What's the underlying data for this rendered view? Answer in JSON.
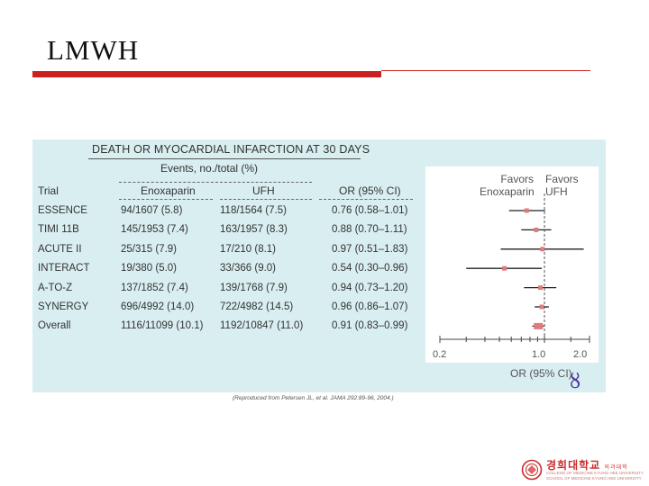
{
  "slide": {
    "title": "LMWH"
  },
  "table": {
    "heading": "DEATH OR MYOCARDIAL INFARCTION AT 30 DAYS",
    "events_heading": "Events, no./total (%)",
    "columns": {
      "trial": "Trial",
      "enox": "Enoxaparin",
      "ufh": "UFH",
      "or": "OR (95% CI)"
    },
    "rows": [
      {
        "trial": "ESSENCE",
        "enox": "94/1607 (5.8)",
        "ufh": "118/1564 (7.5)",
        "or": "0.76 (0.58–1.01)"
      },
      {
        "trial": "TIMI 11B",
        "enox": "145/1953 (7.4)",
        "ufh": "163/1957 (8.3)",
        "or": "0.88 (0.70–1.11)"
      },
      {
        "trial": "ACUTE II",
        "enox": "25/315 (7.9)",
        "ufh": "17/210 (8.1)",
        "or": "0.97 (0.51–1.83)"
      },
      {
        "trial": "INTERACT",
        "enox": "19/380 (5.0)",
        "ufh": "33/366 (9.0)",
        "or": "0.54 (0.30–0.96)"
      },
      {
        "trial": "A-TO-Z",
        "enox": "137/1852 (7.4)",
        "ufh": "139/1768 (7.9)",
        "or": "0.94 (0.73–1.20)"
      },
      {
        "trial": "SYNERGY",
        "enox": "696/4992 (14.0)",
        "ufh": "722/4982 (14.5)",
        "or": "0.96 (0.86–1.07)"
      },
      {
        "trial": "Overall",
        "enox": "1116/11099 (10.1)",
        "ufh": "1192/10847 (11.0)",
        "or": "0.91 (0.83–0.99)"
      }
    ]
  },
  "chart_data": {
    "type": "forest",
    "categories": [
      "ESSENCE",
      "TIMI 11B",
      "ACUTE II",
      "INTERACT",
      "A-TO-Z",
      "SYNERGY",
      "Overall"
    ],
    "or": [
      0.76,
      0.88,
      0.97,
      0.54,
      0.94,
      0.96,
      0.91
    ],
    "ci_low": [
      0.58,
      0.7,
      0.51,
      0.3,
      0.73,
      0.86,
      0.83
    ],
    "ci_high": [
      1.01,
      1.11,
      1.83,
      0.96,
      1.2,
      1.07,
      0.99
    ],
    "xscale": "log",
    "xlim": [
      0.2,
      2.0
    ],
    "xticks": [
      "0.2",
      "1.0",
      "2.0"
    ],
    "reference_line": 1.0,
    "xlabel": "OR (95% CI)",
    "favors_left": "Favors Enoxaparin",
    "favors_right": "Favors UFH",
    "colors": {
      "marker": "#e07b7b",
      "line": "#222222",
      "axis": "#444444"
    }
  },
  "favors": {
    "left_1": "Favors",
    "left_2": "Enoxaparin",
    "right_1": "Favors",
    "right_2": "UFH"
  },
  "footnote": "(Reproduced from Petersen JL, et al. JAMA 292:89-96, 2004.)",
  "logo": {
    "name": "경희대학교",
    "tag": "의과대학",
    "sub1": "COLLEGE OF MEDICINE KYUNG HEE UNIVERSITY",
    "sub2": "SCHOOL OF MEDICINE KYUNG HEE UNIVERSITY",
    "color": "#cc2a2a"
  }
}
